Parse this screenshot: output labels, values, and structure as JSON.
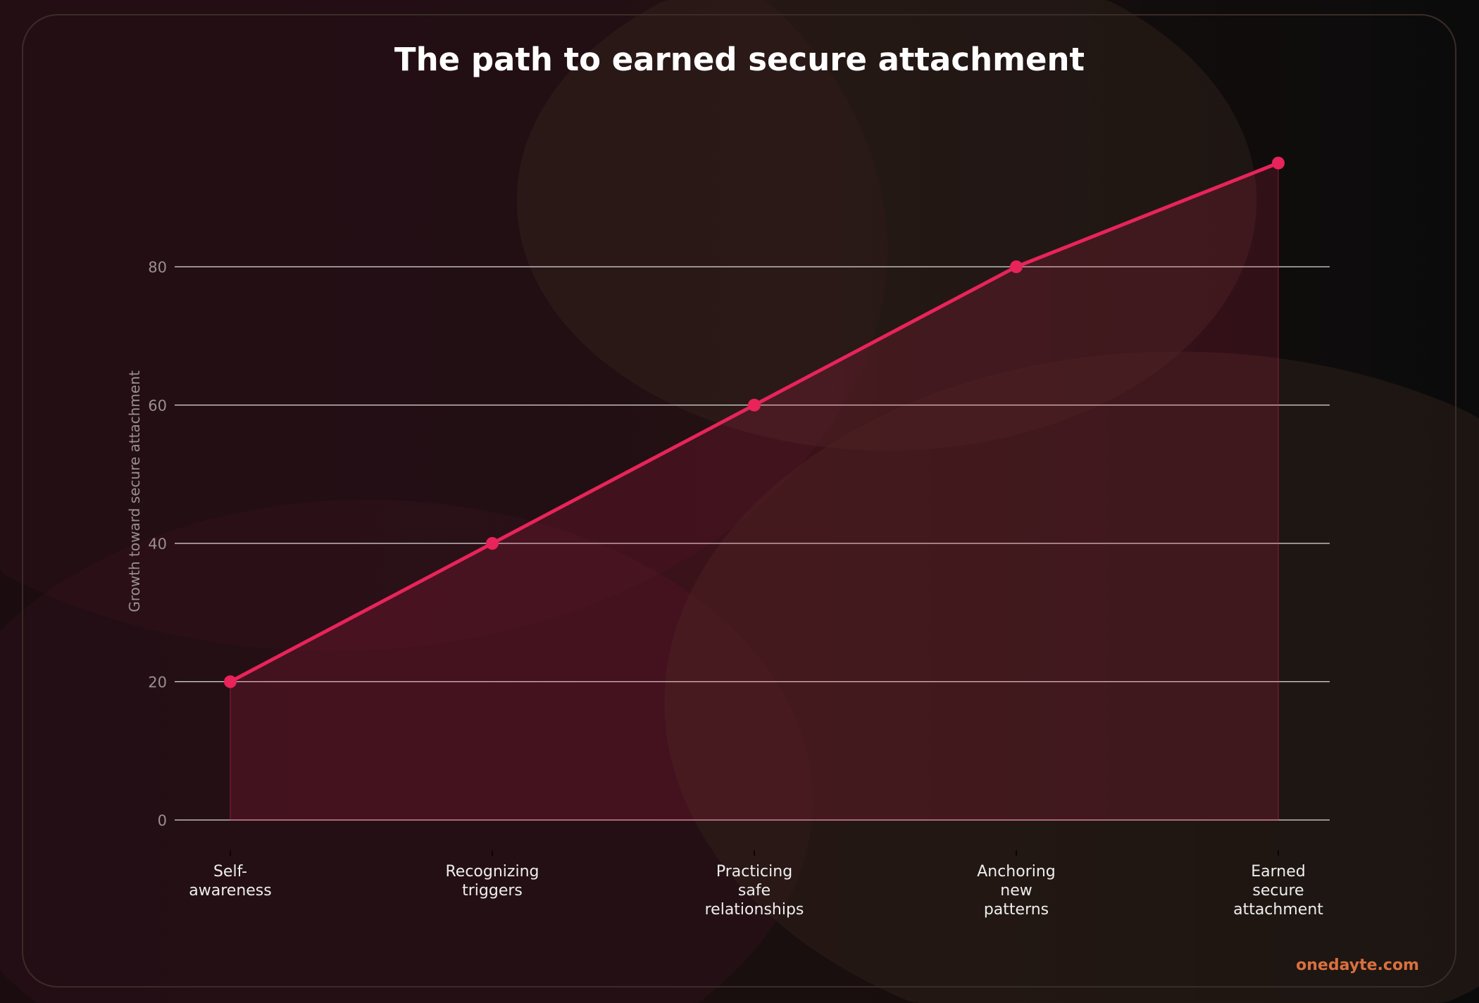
{
  "chart_data": {
    "type": "line",
    "title": "The path to earned secure attachment",
    "xlabel": "",
    "ylabel": "Growth toward secure attachment",
    "categories": [
      [
        "Self-",
        "awareness"
      ],
      [
        "Recognizing",
        "triggers"
      ],
      [
        "Practicing",
        "safe",
        "relationships"
      ],
      [
        "Anchoring",
        "new",
        "patterns"
      ],
      [
        "Earned",
        "secure",
        "attachment"
      ]
    ],
    "values": [
      20,
      40,
      60,
      80,
      95
    ],
    "yticks": [
      0,
      20,
      40,
      60,
      80
    ],
    "ylim": [
      0,
      100
    ],
    "grid": "horizontal",
    "area_fill": true,
    "colors": {
      "line": "#e8245a",
      "fill": "#e8245a",
      "grid": "#ffffff",
      "title": "#ffffff",
      "tick": "#9a8f92",
      "xlabel": "#eeeeee"
    }
  },
  "watermark": {
    "text": "onedayte.com",
    "color": "#d9703f"
  }
}
